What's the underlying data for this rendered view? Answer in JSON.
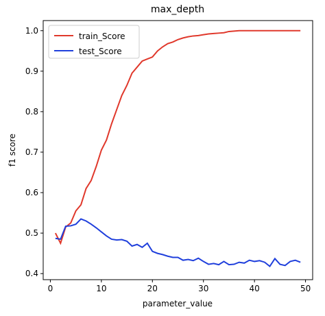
{
  "chart_data": {
    "type": "line",
    "title": "max_depth",
    "x_label": "parameter_value",
    "y_label": "f1 score",
    "x": [
      1,
      2,
      3,
      4,
      5,
      6,
      7,
      8,
      9,
      10,
      11,
      12,
      13,
      14,
      15,
      16,
      17,
      18,
      19,
      20,
      21,
      22,
      23,
      24,
      25,
      26,
      27,
      28,
      29,
      30,
      31,
      32,
      33,
      34,
      35,
      36,
      37,
      38,
      39,
      40,
      41,
      42,
      43,
      44,
      45,
      46,
      47,
      48,
      49
    ],
    "series": [
      {
        "name": "train_Score",
        "color": "#e0382b",
        "values": [
          0.5,
          0.475,
          0.515,
          0.525,
          0.555,
          0.57,
          0.61,
          0.63,
          0.665,
          0.705,
          0.73,
          0.77,
          0.805,
          0.84,
          0.865,
          0.895,
          0.91,
          0.925,
          0.93,
          0.935,
          0.95,
          0.96,
          0.968,
          0.972,
          0.978,
          0.982,
          0.985,
          0.987,
          0.988,
          0.99,
          0.992,
          0.993,
          0.994,
          0.995,
          0.998,
          0.999,
          1,
          1,
          1,
          1,
          1,
          1,
          1,
          1,
          1,
          1,
          1,
          1,
          1
        ]
      },
      {
        "name": "test_Score",
        "color": "#1f3fdc",
        "values": [
          0.487,
          0.485,
          0.517,
          0.518,
          0.522,
          0.535,
          0.53,
          0.522,
          0.513,
          0.503,
          0.493,
          0.485,
          0.483,
          0.484,
          0.48,
          0.468,
          0.472,
          0.465,
          0.475,
          0.455,
          0.45,
          0.447,
          0.443,
          0.44,
          0.44,
          0.433,
          0.435,
          0.432,
          0.438,
          0.43,
          0.423,
          0.425,
          0.422,
          0.43,
          0.422,
          0.423,
          0.428,
          0.426,
          0.433,
          0.43,
          0.432,
          0.428,
          0.418,
          0.437,
          0.423,
          0.42,
          0.43,
          0.433,
          0.428
        ]
      }
    ],
    "xlim": [
      -1.4,
      51.4
    ],
    "ylim": [
      0.385,
      1.025
    ],
    "xticks": [
      0,
      10,
      20,
      30,
      40,
      50
    ],
    "yticks": [
      0.4,
      0.5,
      0.6,
      0.7,
      0.8,
      0.9,
      {
        "value": 1.0,
        "label": "1.0"
      }
    ],
    "legend": "upper left"
  }
}
